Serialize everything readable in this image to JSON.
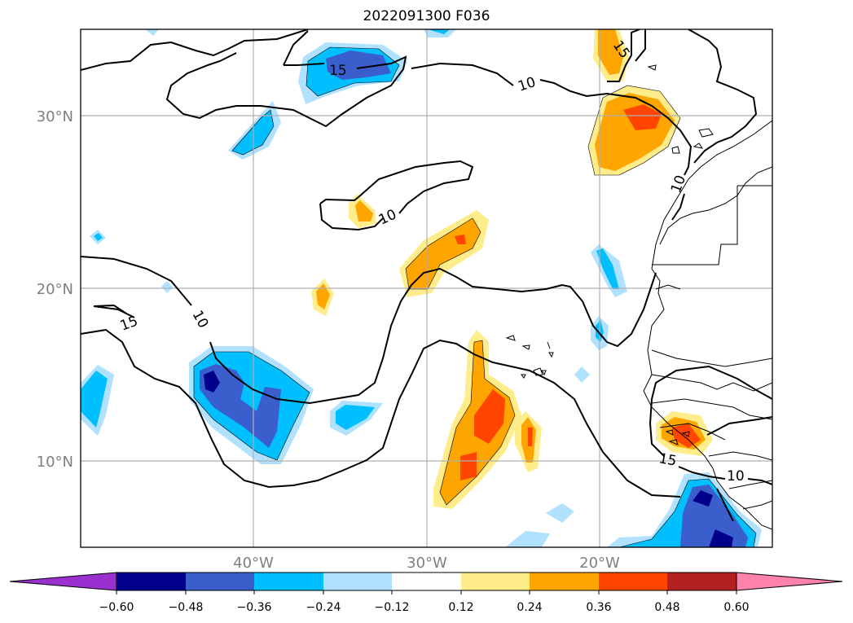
{
  "title": "2022091300 F036",
  "map": {
    "lat_labels": [
      "30°N",
      "20°N",
      "10°N"
    ],
    "lon_labels": [
      "40°W",
      "30°W",
      "20°W"
    ],
    "contour_labels": [
      "15",
      "10",
      "10",
      "10",
      "15",
      "10",
      "15",
      "10",
      "15"
    ],
    "colors": {
      "grid": "#b0b0b0",
      "contour": "#000000",
      "coast": "#000000"
    }
  },
  "colorbar": {
    "tick_labels": [
      "−0.60",
      "−0.48",
      "−0.36",
      "−0.24",
      "−0.12",
      "0.12",
      "0.24",
      "0.36",
      "0.48",
      "0.60"
    ],
    "colors": [
      "#9b30d0",
      "#00008b",
      "#3a5fcd",
      "#00bfff",
      "#b0e2ff",
      "#ffffff",
      "#ffec8b",
      "#ffa500",
      "#ff4500",
      "#b22222",
      "#ff82ab"
    ]
  }
}
